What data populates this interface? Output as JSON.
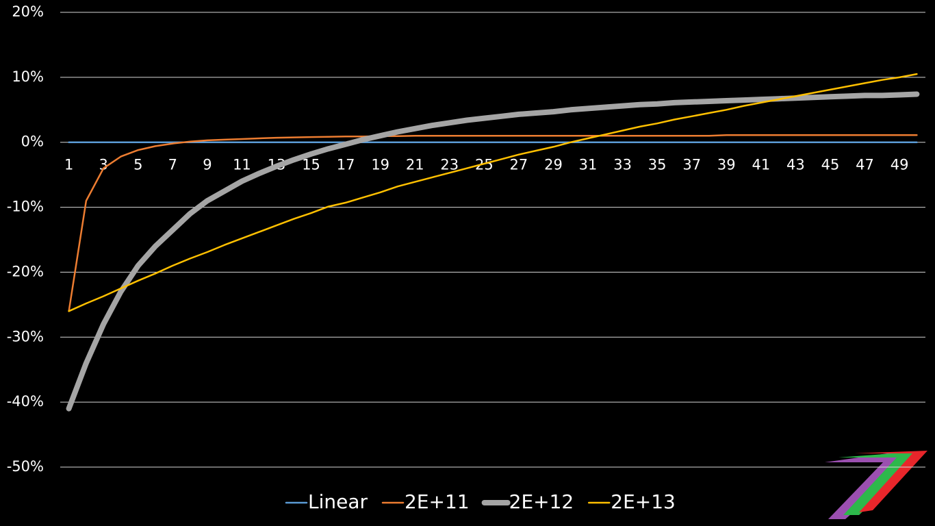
{
  "chart_data": {
    "type": "line",
    "categories": [
      1,
      null,
      3,
      null,
      5,
      null,
      7,
      null,
      9,
      null,
      11,
      null,
      13,
      null,
      15,
      null,
      17,
      null,
      19,
      null,
      21,
      null,
      23,
      null,
      25,
      null,
      27,
      null,
      29,
      null,
      31,
      null,
      33,
      null,
      35,
      null,
      37,
      null,
      39,
      null,
      41,
      null,
      43,
      null,
      45,
      null,
      47,
      null,
      49,
      null
    ],
    "series": [
      {
        "name": "Linear",
        "color": "#5b9bd5",
        "values": [
          0,
          0,
          0,
          0,
          0,
          0,
          0,
          0,
          0,
          0,
          0,
          0,
          0,
          0,
          0,
          0,
          0,
          0,
          0,
          0,
          0,
          0,
          0,
          0,
          0,
          0,
          0,
          0,
          0,
          0,
          0,
          0,
          0,
          0,
          0,
          0,
          0,
          0,
          0,
          0,
          0,
          0,
          0,
          0,
          0,
          0,
          0,
          0,
          0,
          0
        ]
      },
      {
        "name": "2E+11",
        "color": "#ed7d31",
        "values": [
          -26,
          -9,
          -4,
          -2.2,
          -1.2,
          -0.6,
          -0.2,
          0.1,
          0.3,
          0.4,
          0.5,
          0.6,
          0.7,
          0.75,
          0.8,
          0.85,
          0.9,
          0.9,
          0.95,
          0.95,
          1,
          1,
          1,
          1,
          1,
          1,
          1,
          1,
          1,
          1,
          1,
          1,
          1,
          1,
          1,
          1,
          1,
          1,
          1.1,
          1.1,
          1.1,
          1.1,
          1.1,
          1.1,
          1.1,
          1.1,
          1.1,
          1.1,
          1.1,
          1.1
        ]
      },
      {
        "name": "2E+12",
        "color": "#a5a5a5",
        "values": [
          -41,
          -34,
          -28,
          -23,
          -19,
          -16,
          -13.5,
          -11,
          -9,
          -7.5,
          -6,
          -4.8,
          -3.7,
          -2.7,
          -1.8,
          -1,
          -0.3,
          0.4,
          1,
          1.6,
          2.1,
          2.6,
          3,
          3.4,
          3.7,
          4,
          4.3,
          4.5,
          4.7,
          5,
          5.2,
          5.4,
          5.6,
          5.8,
          5.9,
          6.1,
          6.2,
          6.3,
          6.4,
          6.5,
          6.6,
          6.7,
          6.8,
          6.9,
          7,
          7.1,
          7.2,
          7.2,
          7.3,
          7.4
        ]
      },
      {
        "name": "2E+13",
        "color": "#ffc000",
        "values": [
          -26,
          -24.8,
          -23.7,
          -22.5,
          -21.3,
          -20.2,
          -19,
          -17.9,
          -16.9,
          -15.8,
          -14.8,
          -13.8,
          -12.8,
          -11.8,
          -10.9,
          -9.9,
          -9.3,
          -8.5,
          -7.7,
          -6.8,
          -6.1,
          -5.4,
          -4.7,
          -4,
          -3.3,
          -2.6,
          -1.9,
          -1.3,
          -0.7,
          0,
          0.6,
          1.2,
          1.8,
          2.4,
          2.9,
          3.5,
          4,
          4.5,
          5,
          5.6,
          6.1,
          6.6,
          7.1,
          7.6,
          8.1,
          8.6,
          9.1,
          9.6,
          10,
          10.5
        ]
      }
    ],
    "ylim": [
      -50,
      20
    ],
    "yticks": [
      {
        "value": -50,
        "label": "-50%"
      },
      {
        "value": -40,
        "label": "-40%"
      },
      {
        "value": -30,
        "label": "-30%"
      },
      {
        "value": -20,
        "label": "-20%"
      },
      {
        "value": -10,
        "label": "-10%"
      },
      {
        "value": 0,
        "label": "0%"
      },
      {
        "value": 10,
        "label": "10%"
      },
      {
        "value": 20,
        "label": "20%"
      }
    ],
    "grid": true,
    "legend": "bottom"
  }
}
